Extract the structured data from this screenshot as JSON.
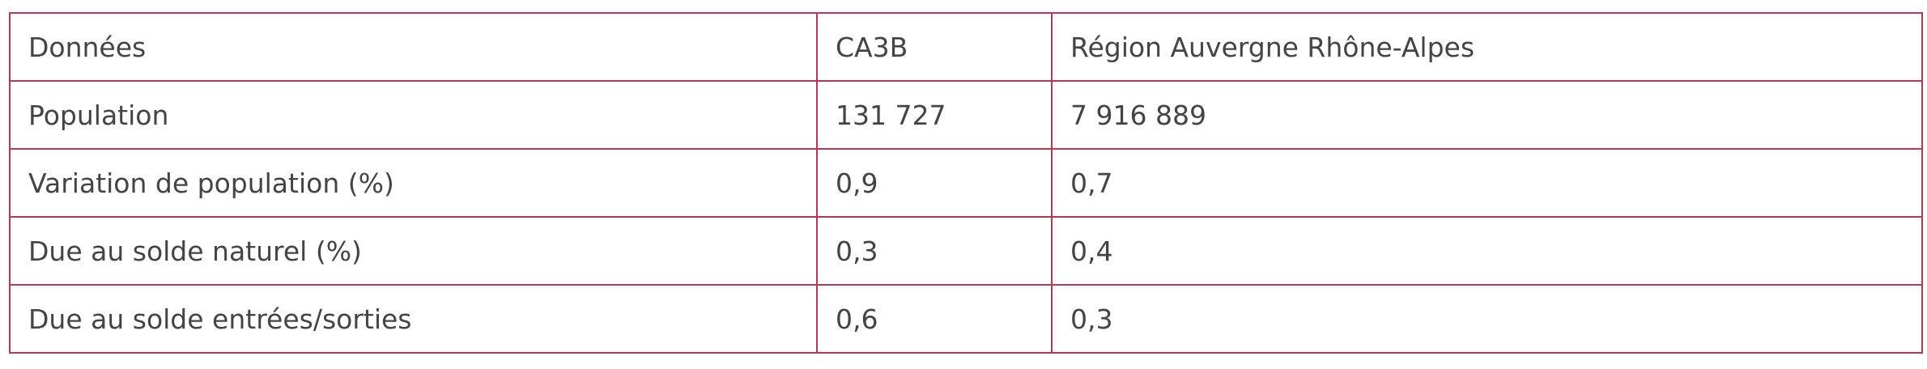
{
  "table": {
    "header": [
      "Données",
      "CA3B",
      "Région Auvergne Rhône-Alpes"
    ],
    "rows": [
      [
        "Population",
        "131 727",
        "7 916 889"
      ],
      [
        "Variation de population (%)",
        "0,9",
        "0,7"
      ],
      [
        "Due au solde naturel (%)",
        "0,3",
        "0,4"
      ],
      [
        "Due au solde entrées/sorties",
        "0,6",
        "0,3"
      ]
    ]
  }
}
